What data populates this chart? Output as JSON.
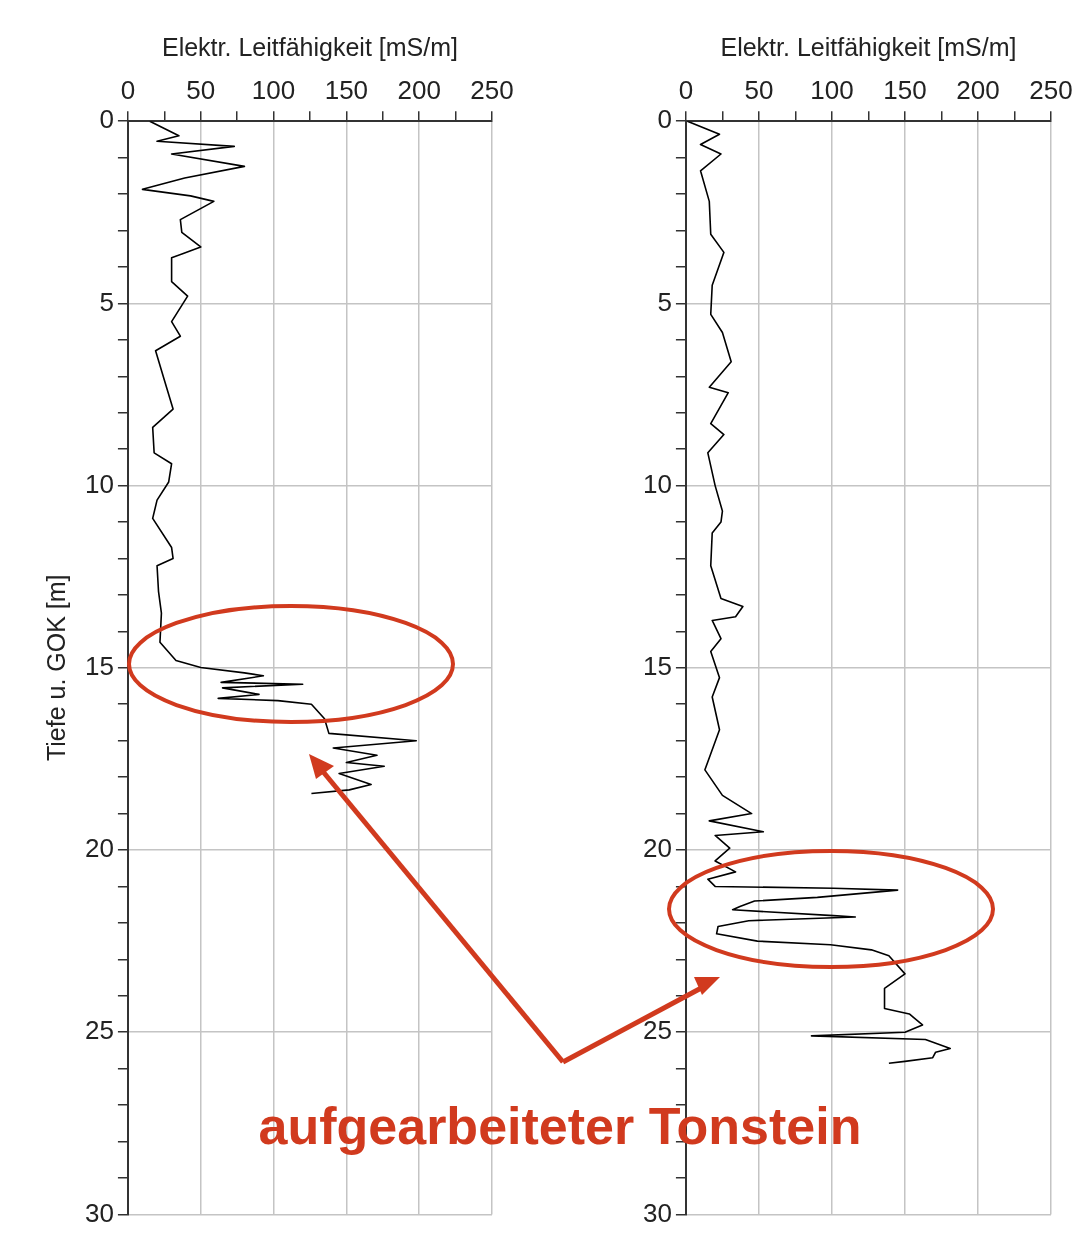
{
  "chart_data": [
    {
      "type": "line",
      "xlabel": "Elektr. Leitfähigkeit [mS/m]",
      "ylabel": "Tiefe u. GOK [m]",
      "xlim": [
        0,
        250
      ],
      "ylim": [
        30,
        0
      ],
      "grid": true,
      "marker": "none",
      "line_style": "solid",
      "xticks": [
        0,
        {
          "value": 25,
          "label": null
        },
        50,
        {
          "value": 75,
          "label": null
        },
        100,
        {
          "value": 125,
          "label": null
        },
        150,
        {
          "value": 175,
          "label": null
        },
        200,
        {
          "value": 225,
          "label": null
        },
        250
      ],
      "yticks": [
        0,
        {
          "value": 1,
          "label": null
        },
        {
          "value": 2,
          "label": null
        },
        {
          "value": 3,
          "label": null
        },
        {
          "value": 4,
          "label": null
        },
        5,
        {
          "value": 6,
          "label": null
        },
        {
          "value": 7,
          "label": null
        },
        {
          "value": 8,
          "label": null
        },
        {
          "value": 9,
          "label": null
        },
        10,
        {
          "value": 11,
          "label": null
        },
        {
          "value": 12,
          "label": null
        },
        {
          "value": 13,
          "label": null
        },
        {
          "value": 14,
          "label": null
        },
        15,
        {
          "value": 16,
          "label": null
        },
        {
          "value": 17,
          "label": null
        },
        {
          "value": 18,
          "label": null
        },
        {
          "value": 19,
          "label": null
        },
        20,
        {
          "value": 21,
          "label": null
        },
        {
          "value": 22,
          "label": null
        },
        {
          "value": 23,
          "label": null
        },
        {
          "value": 24,
          "label": null
        },
        25,
        {
          "value": 26,
          "label": null
        },
        {
          "value": 27,
          "label": null
        },
        {
          "value": 28,
          "label": null
        },
        {
          "value": 29,
          "label": null
        },
        30
      ],
      "annotations": [
        "aufgearbeiteter Tonstein"
      ],
      "series": [
        {
          "color": "#000000",
          "x": [
            15,
            25,
            35,
            20,
            73,
            30,
            80,
            39,
            10,
            43,
            59,
            36,
            37,
            50,
            30,
            30,
            41,
            30,
            36,
            19,
            25,
            31,
            17,
            18,
            30,
            28,
            20,
            17,
            30,
            31,
            20,
            21,
            23,
            22,
            33,
            50,
            80,
            93,
            64,
            120,
            65,
            90,
            62,
            103,
            126,
            135,
            138,
            198,
            141,
            171,
            150,
            176,
            145,
            167,
            152,
            126
          ],
          "values": [
            0,
            0.2,
            0.4,
            0.55,
            0.69,
            0.9,
            1.24,
            1.56,
            1.87,
            2.05,
            2.2,
            2.7,
            3.05,
            3.45,
            3.75,
            4.4,
            4.8,
            5.5,
            5.9,
            6.3,
            7.1,
            7.9,
            8.4,
            9.1,
            9.4,
            9.9,
            10.4,
            10.9,
            11.7,
            12.0,
            12.2,
            12.9,
            13.5,
            14.3,
            14.8,
            14.99,
            15.14,
            15.22,
            15.4,
            15.45,
            15.55,
            15.73,
            15.84,
            15.9,
            16.0,
            16.4,
            16.8,
            17.0,
            17.2,
            17.4,
            17.6,
            17.7,
            17.9,
            18.2,
            18.35,
            18.45
          ]
        }
      ]
    },
    {
      "type": "line",
      "xlabel": "Elektr. Leitfähigkeit [mS/m]",
      "xlim": [
        0,
        250
      ],
      "ylim": [
        30,
        0
      ],
      "grid": true,
      "marker": "none",
      "line_style": "solid",
      "xticks": [
        0,
        {
          "value": 25,
          "label": null
        },
        50,
        {
          "value": 75,
          "label": null
        },
        100,
        {
          "value": 125,
          "label": null
        },
        150,
        {
          "value": 175,
          "label": null
        },
        200,
        {
          "value": 225,
          "label": null
        },
        250
      ],
      "yticks": [
        0,
        {
          "value": 1,
          "label": null
        },
        {
          "value": 2,
          "label": null
        },
        {
          "value": 3,
          "label": null
        },
        {
          "value": 4,
          "label": null
        },
        5,
        {
          "value": 6,
          "label": null
        },
        {
          "value": 7,
          "label": null
        },
        {
          "value": 8,
          "label": null
        },
        {
          "value": 9,
          "label": null
        },
        10,
        {
          "value": 11,
          "label": null
        },
        {
          "value": 12,
          "label": null
        },
        {
          "value": 13,
          "label": null
        },
        {
          "value": 14,
          "label": null
        },
        15,
        {
          "value": 16,
          "label": null
        },
        {
          "value": 17,
          "label": null
        },
        {
          "value": 18,
          "label": null
        },
        {
          "value": 19,
          "label": null
        },
        20,
        {
          "value": 21,
          "label": null
        },
        {
          "value": 22,
          "label": null
        },
        {
          "value": 23,
          "label": null
        },
        {
          "value": 24,
          "label": null
        },
        25,
        {
          "value": 26,
          "label": null
        },
        {
          "value": 27,
          "label": null
        },
        {
          "value": 28,
          "label": null
        },
        {
          "value": 29,
          "label": null
        },
        30
      ],
      "series": [
        {
          "color": "#000000",
          "x": [
            1,
            12,
            23,
            10,
            24,
            10,
            16,
            17,
            26,
            18,
            17,
            25,
            31,
            16,
            29,
            17,
            26,
            15,
            20,
            25,
            24,
            18,
            17,
            24,
            39,
            34,
            18,
            24,
            17,
            23,
            18,
            23,
            13,
            25,
            45,
            16,
            53,
            20,
            30,
            20,
            34,
            15,
            20,
            101,
            145,
            90,
            47,
            37,
            32,
            101,
            116,
            43,
            22,
            21,
            49,
            99,
            127,
            139,
            150,
            136,
            136,
            153,
            162,
            150,
            86,
            164,
            181,
            171,
            169,
            150,
            139
          ],
          "values": [
            0,
            0.18,
            0.36,
            0.64,
            0.9,
            1.36,
            2.2,
            3.1,
            3.6,
            4.5,
            5.3,
            5.8,
            6.6,
            7.3,
            7.45,
            8.3,
            8.6,
            9.1,
            10.0,
            10.7,
            11.0,
            11.3,
            12.2,
            13.1,
            13.32,
            13.6,
            13.7,
            14.2,
            14.55,
            15.27,
            15.8,
            16.7,
            17.8,
            18.5,
            19.0,
            19.2,
            19.5,
            19.6,
            19.95,
            20.3,
            20.6,
            20.8,
            21.0,
            21.05,
            21.1,
            21.3,
            21.4,
            21.55,
            21.64,
            21.8,
            21.84,
            21.94,
            22.1,
            22.3,
            22.5,
            22.6,
            22.74,
            22.9,
            23.4,
            23.8,
            24.35,
            24.5,
            24.8,
            25.0,
            25.1,
            25.2,
            25.45,
            25.55,
            25.7,
            25.8,
            25.85
          ]
        }
      ]
    }
  ]
}
